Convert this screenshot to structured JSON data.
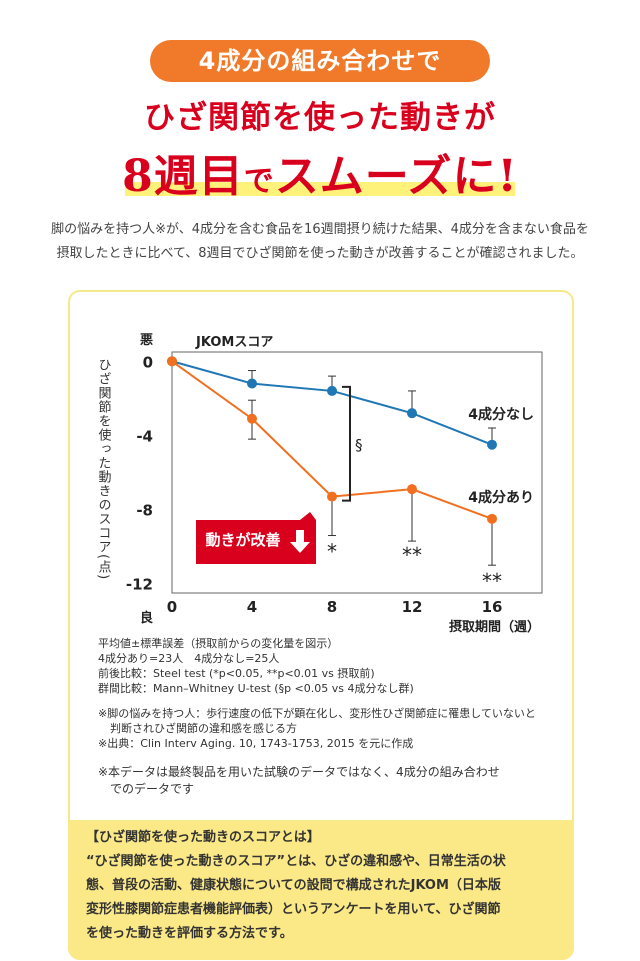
{
  "header": {
    "pill": "4成分の組み合わせで",
    "headline_line1": "ひざ関節を使った動きが",
    "headline_big": "8週目",
    "headline_small": "で",
    "headline_rest": "スムーズに!"
  },
  "intro": {
    "line1": "脚の悩みを持つ人※が、4成分を含む食品を16週間摂り続けた結果、4成分を含まない食品を",
    "line2": "摂取したときに比べて、8週目でひざ関節を使った動きが改善することが確認されました。"
  },
  "chart_data": {
    "type": "line",
    "title": "JKOMスコア",
    "ylabel": "ひざ関節を使った動きのスコア(点)",
    "xlabel": "摂取期間（週）",
    "y_top_label": "悪",
    "y_bottom_label": "良",
    "x": [
      0,
      4,
      8,
      12,
      16
    ],
    "xticks": [
      "0",
      "4",
      "8",
      "12",
      "16"
    ],
    "yticks": [
      "0",
      "-4",
      "-8",
      "-12"
    ],
    "ylim": [
      -12.5,
      0.5
    ],
    "xlim": [
      0,
      18.5
    ],
    "series": [
      {
        "name": "4成分なし",
        "color": "#1f77b4",
        "values": [
          0,
          -1.2,
          -1.6,
          -2.8,
          -4.5
        ],
        "err_up": [
          0,
          0.7,
          0.8,
          1.2,
          0.9
        ],
        "err_down": [
          0,
          0,
          0,
          0,
          0
        ]
      },
      {
        "name": "4成分あり",
        "color": "#f07020",
        "values": [
          0,
          -3.1,
          -7.3,
          -6.9,
          -8.5
        ],
        "err_up": [
          0,
          1.0,
          0,
          0,
          0
        ],
        "err_down": [
          0,
          1.1,
          2.1,
          2.8,
          2.5
        ]
      }
    ],
    "annotations": {
      "section_mark": "§",
      "stars": [
        {
          "x": 8,
          "y": -10.2,
          "text": "*"
        },
        {
          "x": 12,
          "y": -10.4,
          "text": "**"
        },
        {
          "x": 16,
          "y": -11.8,
          "text": "**"
        }
      ],
      "callout": "動きが改善"
    }
  },
  "notes": {
    "n1": "平均値±標準誤差（摂取前からの変化量を図示）",
    "n2": "4成分あり=23人　4成分なし=25人",
    "n3": "前後比較：Steel test (*p<0.05, **p<0.01 vs 摂取前)",
    "n4": "群間比較：Mann–Whitney U-test (§p <0.05 vs 4成分なし群)",
    "n5": "※脚の悩みを持つ人：歩行速度の低下が顕在化し、変形性ひざ関節症に罹患していないと",
    "n6": "判断されひざ関節の違和感を感じる方",
    "n7": "※出典：Clin Interv Aging. 10, 1743-1753, 2015 を元に作成",
    "d1": "※本データは最終製品を用いた試験のデータではなく、4成分の組み合わせ",
    "d2": "でのデータです"
  },
  "definition": {
    "title": "【ひざ関節を使った動きのスコアとは】",
    "l1": "“ひざ関節を使った動きのスコア”とは、ひざの違和感や、日常生活の状",
    "l2": "態、普段の活動、健康状態についての設問で構成されたJKOM（日本版",
    "l3": "変形性膝関節症患者機能評価表）というアンケートを用いて、ひざ関節",
    "l4": "を使った動きを評価する方法です。"
  }
}
